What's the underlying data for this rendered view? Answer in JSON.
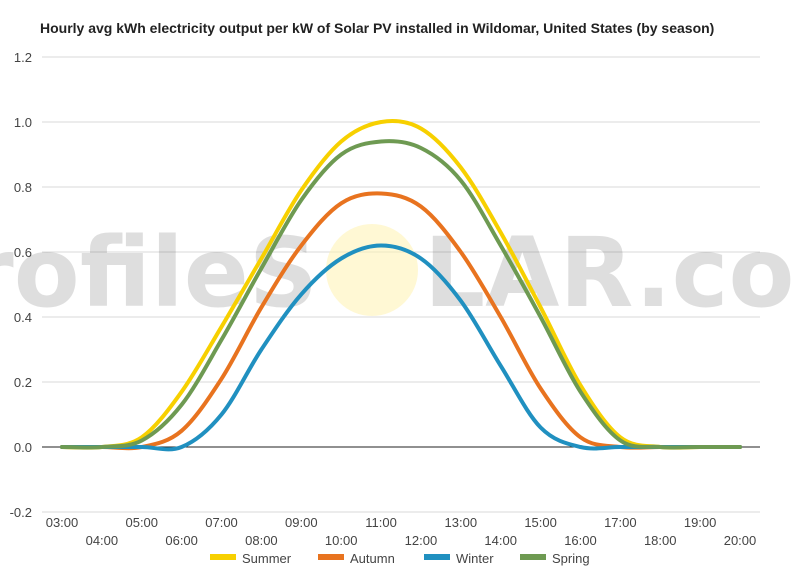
{
  "watermark": {
    "left": "profileS",
    "right": "LAR.com"
  },
  "chart_data": {
    "type": "line",
    "title": "Hourly avg kWh electricity output per kW of Solar PV installed in Wildomar, United States (by season)",
    "xlabel": "",
    "ylabel": "",
    "x_ticks": [
      "03:00",
      "04:00",
      "05:00",
      "06:00",
      "07:00",
      "08:00",
      "09:00",
      "10:00",
      "11:00",
      "12:00",
      "13:00",
      "14:00",
      "15:00",
      "16:00",
      "17:00",
      "18:00",
      "19:00",
      "20:00"
    ],
    "y_ticks": [
      "-0.2",
      "0.0",
      "0.2",
      "0.4",
      "0.6",
      "0.8",
      "1.0",
      "1.2"
    ],
    "ylim": [
      -0.2,
      1.2
    ],
    "xlim": [
      3,
      20
    ],
    "grid": true,
    "legend_position": "bottom",
    "series": [
      {
        "name": "Summer",
        "color": "#f7d000",
        "values": [
          0,
          0,
          0.03,
          0.17,
          0.37,
          0.58,
          0.79,
          0.94,
          1.0,
          0.98,
          0.86,
          0.66,
          0.43,
          0.19,
          0.03,
          0,
          0,
          0
        ]
      },
      {
        "name": "Autumn",
        "color": "#e8731f",
        "values": [
          0,
          0,
          0,
          0.05,
          0.21,
          0.43,
          0.62,
          0.75,
          0.78,
          0.74,
          0.6,
          0.4,
          0.18,
          0.03,
          0,
          0,
          0,
          0
        ]
      },
      {
        "name": "Winter",
        "color": "#2090c0",
        "values": [
          0,
          0,
          0,
          0,
          0.1,
          0.3,
          0.47,
          0.58,
          0.62,
          0.58,
          0.45,
          0.25,
          0.06,
          0,
          0,
          0,
          0,
          0
        ]
      },
      {
        "name": "Spring",
        "color": "#6e9a52",
        "values": [
          0,
          0,
          0.02,
          0.13,
          0.33,
          0.55,
          0.76,
          0.9,
          0.94,
          0.92,
          0.82,
          0.62,
          0.4,
          0.17,
          0.02,
          0,
          0,
          0
        ]
      }
    ]
  }
}
